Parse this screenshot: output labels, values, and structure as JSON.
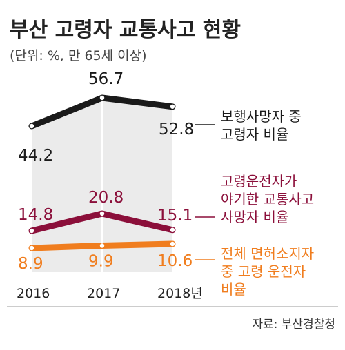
{
  "chart_data": {
    "type": "line",
    "title": "부산 고령자 교통사고 현황",
    "subtitle": "(단위: %, 만 65세 이상)",
    "source": "자료: 부산경찰청",
    "categories": [
      "2016",
      "2017",
      "2018년"
    ],
    "x": [
      2016,
      2017,
      2018
    ],
    "ylim": [
      0,
      65
    ],
    "grid": false,
    "series": [
      {
        "name_lines": [
          "보행사망자 중",
          "고령자 비율"
        ],
        "values": [
          44.2,
          56.7,
          52.8
        ],
        "labels": [
          "44.2",
          "56.7",
          "52.8"
        ],
        "color": "#1a1a1a"
      },
      {
        "name_lines": [
          "고령운전자가",
          "야기한 교통사고",
          "사망자 비율"
        ],
        "values": [
          14.8,
          20.8,
          15.1
        ],
        "labels": [
          "14.8",
          "20.8",
          "15.1"
        ],
        "color": "#8b0f3a"
      },
      {
        "name_lines": [
          "전체 면허소지자",
          "중 고령 운전자",
          "비율"
        ],
        "values": [
          8.9,
          9.9,
          10.6
        ],
        "labels": [
          "8.9",
          "9.9",
          "10.6"
        ],
        "color": "#f07d1e"
      }
    ],
    "area_fill": "#ebebeb"
  }
}
